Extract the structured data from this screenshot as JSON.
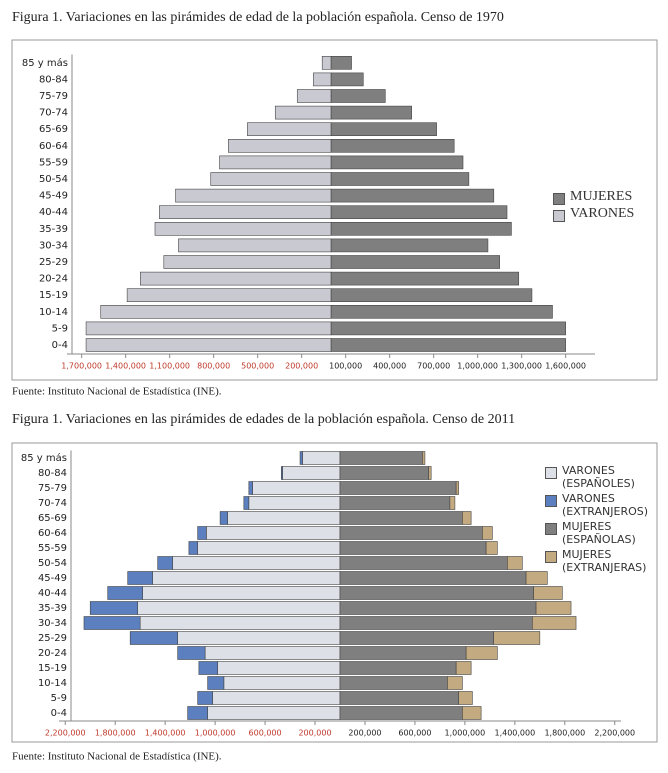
{
  "chart_data": [
    {
      "type": "pyramid",
      "title": "Figura 1. Variaciones en las pirámides de edad de la población española. Censo de 1970",
      "source": "Fuente: Instituto Nacional de Estadística (INE).",
      "categories": [
        "0-4",
        "5-9",
        "10-14",
        "15-19",
        "20-24",
        "25-29",
        "30-34",
        "35-39",
        "40-44",
        "45-49",
        "50-54",
        "55-59",
        "60-64",
        "65-69",
        "70-74",
        "75-79",
        "80-84",
        "85 y más"
      ],
      "series": [
        {
          "name": "MUJERES",
          "color": "#7f7f7f",
          "side": "right",
          "values": [
            1600000,
            1600000,
            1510000,
            1370000,
            1280000,
            1150000,
            1070000,
            1230000,
            1200000,
            1110000,
            940000,
            900000,
            840000,
            720000,
            550000,
            370000,
            220000,
            140000
          ]
        },
        {
          "name": "VARONES",
          "color": "#c9c9d2",
          "side": "left",
          "values": [
            1670000,
            1670000,
            1570000,
            1390000,
            1300000,
            1140000,
            1040000,
            1200000,
            1170000,
            1060000,
            820000,
            760000,
            700000,
            570000,
            380000,
            230000,
            120000,
            60000
          ]
        }
      ],
      "xlim": [
        0,
        1800000
      ],
      "xticks_left": [
        {
          "value": 1700000,
          "label": "1,700,000"
        },
        {
          "value": 1400000,
          "label": "1,400,000"
        },
        {
          "value": 1100000,
          "label": "1,100,000"
        },
        {
          "value": 800000,
          "label": "800,000"
        },
        {
          "value": 500000,
          "label": "500,000"
        },
        {
          "value": 200000,
          "label": "200,000"
        }
      ],
      "xticks_right": [
        {
          "value": 100000,
          "label": "100,000"
        },
        {
          "value": 400000,
          "label": "400,000"
        },
        {
          "value": 700000,
          "label": "700,000"
        },
        {
          "value": 1000000,
          "label": "1,000,000"
        },
        {
          "value": 1300000,
          "label": "1,300,000"
        },
        {
          "value": 1600000,
          "label": "1,600,000"
        }
      ],
      "left_tick_color": "#c0392b"
    },
    {
      "type": "pyramid",
      "title": "Figura 1. Variaciones en las pirámides de edades de la población española. Censo de 2011",
      "source": "Fuente: Instituto Nacional de Estadística (INE).",
      "categories": [
        "0-4",
        "5-9",
        "10-14",
        "15-19",
        "20-24",
        "25-29",
        "30-34",
        "35-39",
        "40-44",
        "45-49",
        "50-54",
        "55-59",
        "60-64",
        "65-69",
        "70-74",
        "75-79",
        "80-84",
        "85 y más"
      ],
      "series": [
        {
          "name": "VARONES (ESPAÑOLES)",
          "color": "#dde0e6",
          "side": "left",
          "values": [
            1060000,
            1020000,
            930000,
            980000,
            1080000,
            1300000,
            1600000,
            1620000,
            1580000,
            1500000,
            1340000,
            1140000,
            1070000,
            900000,
            730000,
            700000,
            460000,
            300000
          ]
        },
        {
          "name": "VARONES (EXTRANJEROS)",
          "color": "#5b7fbf",
          "side": "left",
          "values": [
            160000,
            120000,
            130000,
            150000,
            220000,
            380000,
            450000,
            380000,
            280000,
            200000,
            120000,
            70000,
            70000,
            60000,
            40000,
            30000,
            10000,
            20000
          ]
        },
        {
          "name": "MUJERES (ESPAÑOLAS)",
          "color": "#7f7f7f",
          "side": "right",
          "values": [
            980000,
            950000,
            860000,
            930000,
            1010000,
            1230000,
            1540000,
            1570000,
            1550000,
            1490000,
            1340000,
            1170000,
            1140000,
            980000,
            880000,
            930000,
            710000,
            660000
          ]
        },
        {
          "name": "MUJERES (EXTRANJERAS)",
          "color": "#c4aa80",
          "side": "right",
          "values": [
            150000,
            110000,
            120000,
            120000,
            250000,
            370000,
            350000,
            280000,
            230000,
            170000,
            120000,
            90000,
            80000,
            70000,
            40000,
            20000,
            20000,
            20000
          ]
        }
      ],
      "xlim": [
        0,
        2250000
      ],
      "xticks_left": [
        {
          "value": 2200000,
          "label": "2,200,000"
        },
        {
          "value": 1800000,
          "label": "1,800,000"
        },
        {
          "value": 1400000,
          "label": "1,400,000"
        },
        {
          "value": 1000000,
          "label": "1,000,000"
        },
        {
          "value": 600000,
          "label": "600,000"
        },
        {
          "value": 200000,
          "label": "200,000"
        }
      ],
      "xticks_right": [
        {
          "value": 200000,
          "label": "200,000"
        },
        {
          "value": 600000,
          "label": "600,000"
        },
        {
          "value": 1000000,
          "label": "1,000,000"
        },
        {
          "value": 1400000,
          "label": "1,400,000"
        },
        {
          "value": 1800000,
          "label": "1,800,000"
        },
        {
          "value": 2200000,
          "label": "2,200,000"
        }
      ],
      "left_tick_color": "#c0392b"
    }
  ]
}
